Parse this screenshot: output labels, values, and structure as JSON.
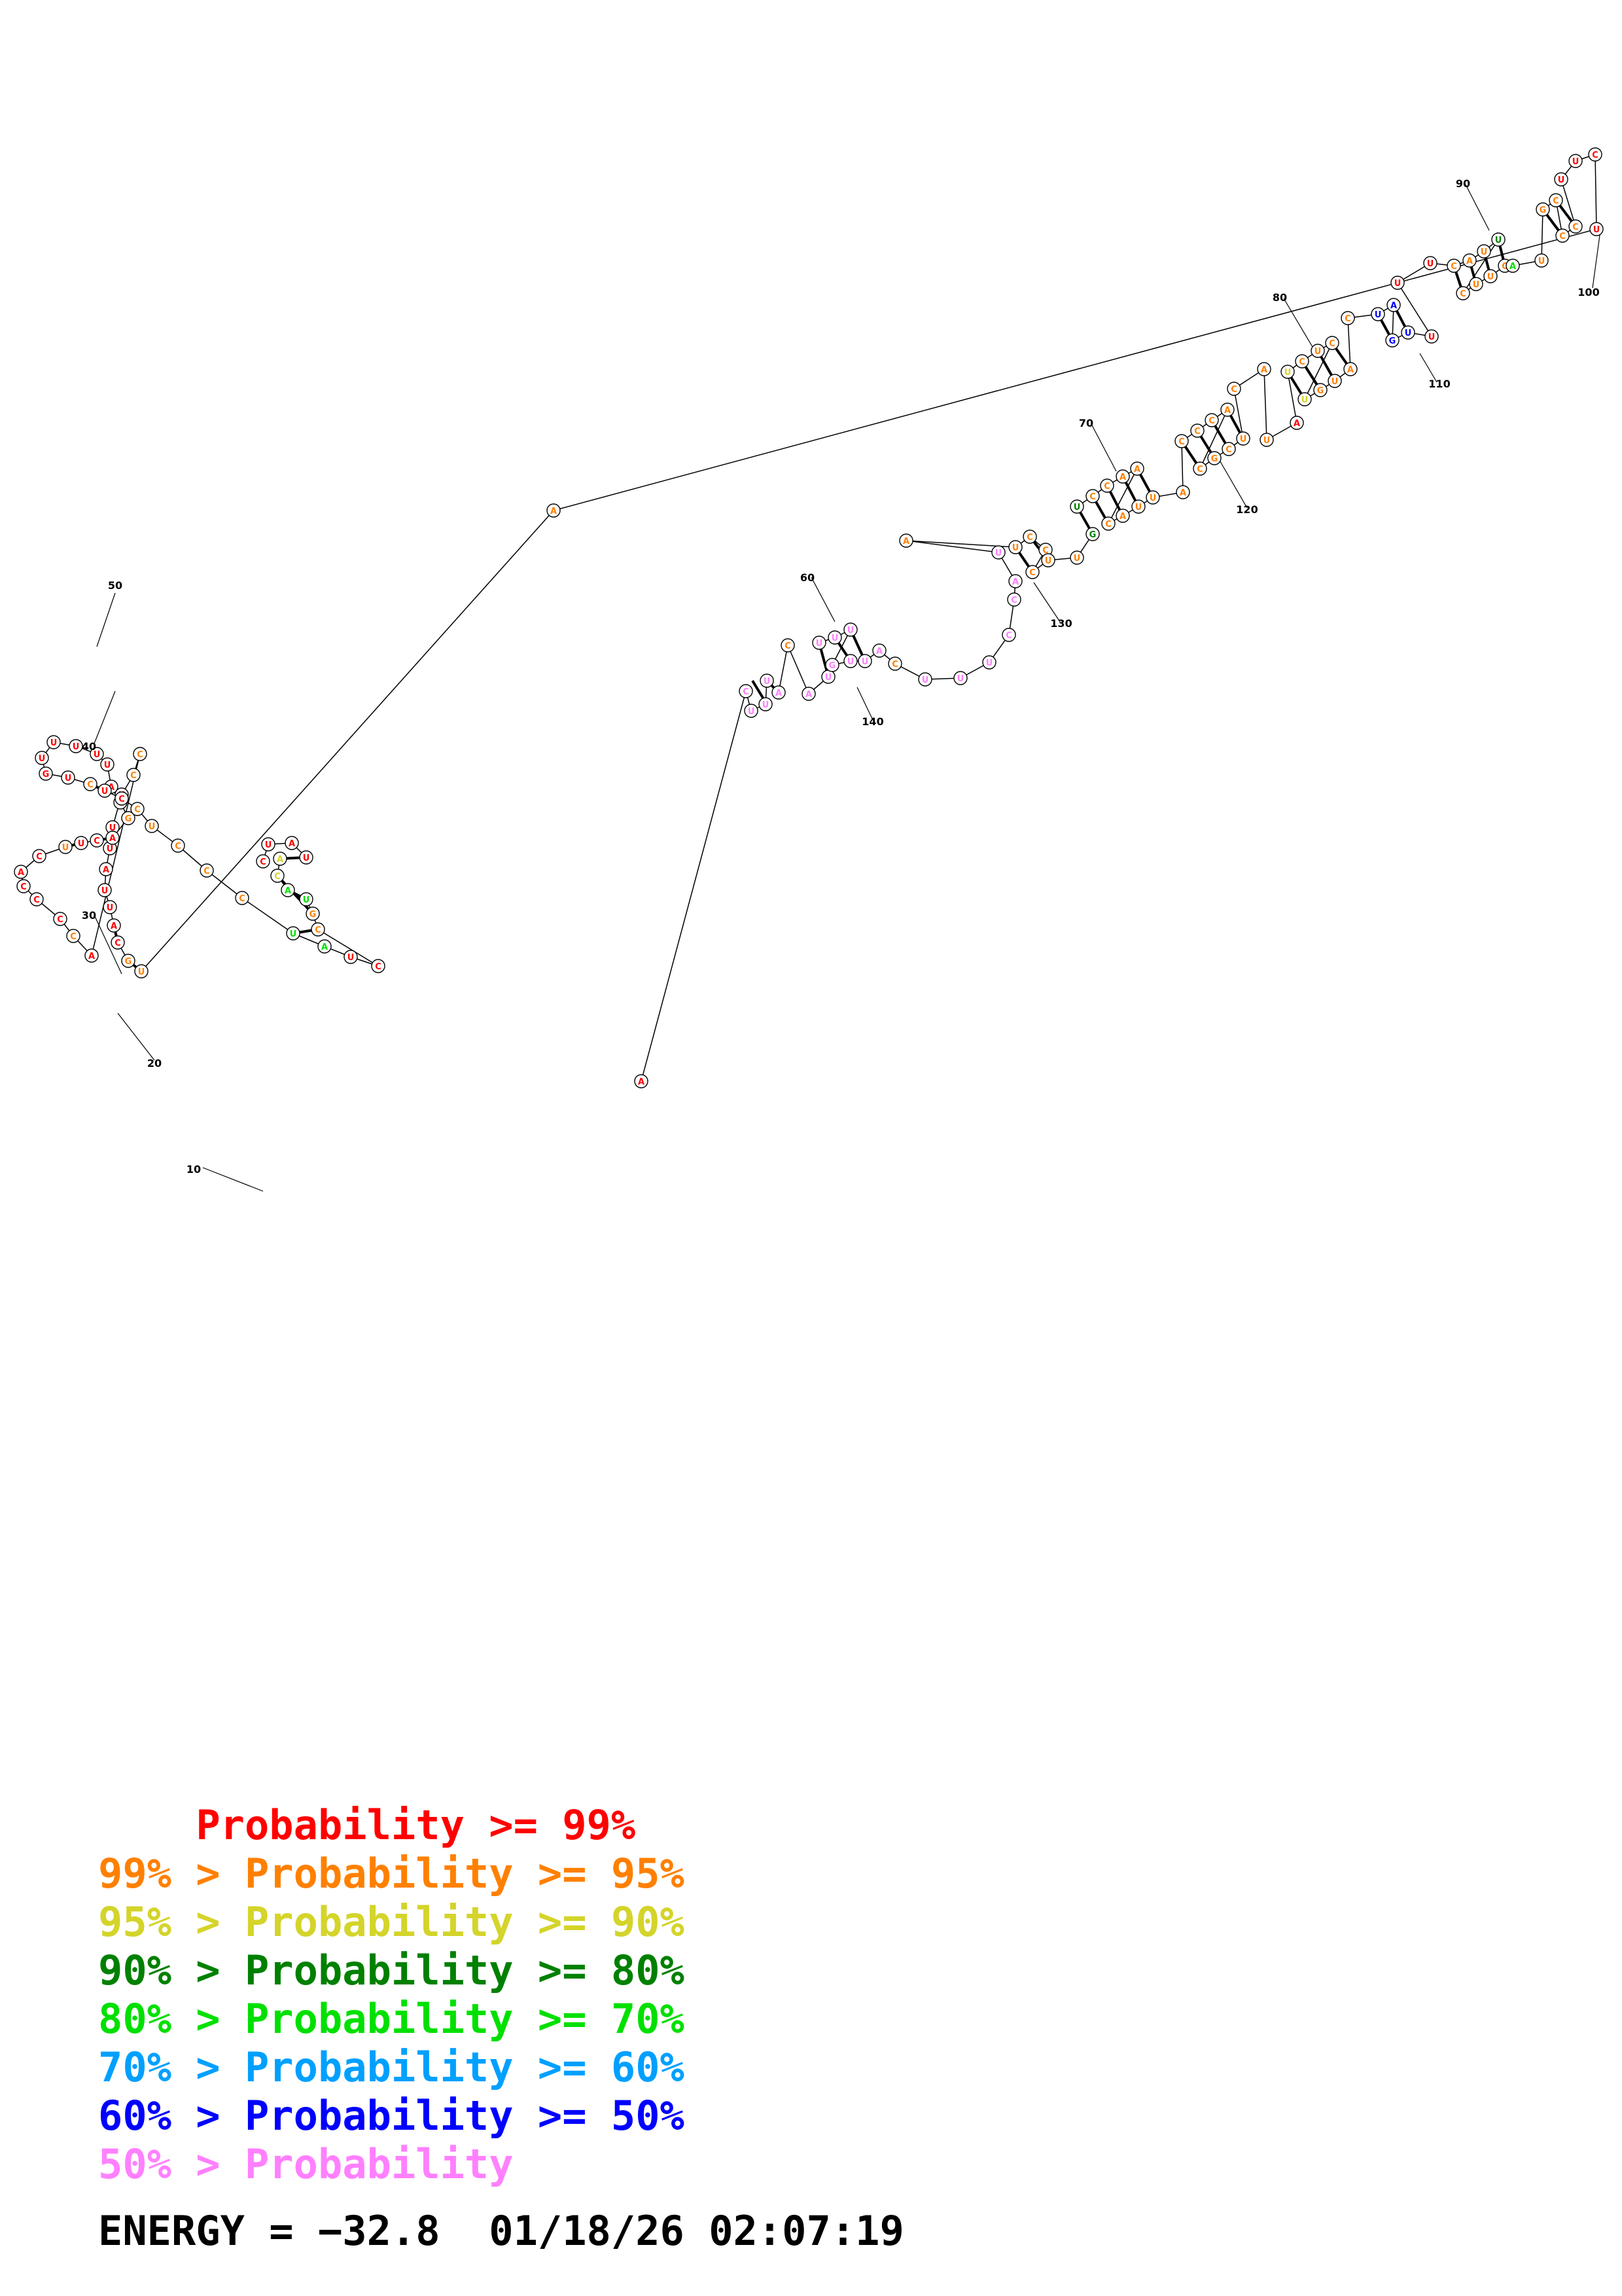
{
  "colors": {
    "red": "#ff0000",
    "orange": "#ff8000",
    "yellow": "#d4d42a",
    "darkgreen": "#008000",
    "green": "#00e000",
    "cyan": "#00a0ff",
    "blue": "#0000ff",
    "pink": "#ff80ff"
  },
  "structure": {
    "position_labels": [
      {
        "id": "p10",
        "text": "10"
      },
      {
        "id": "p20",
        "text": "20"
      },
      {
        "id": "p30",
        "text": "30"
      },
      {
        "id": "p40",
        "text": "40"
      },
      {
        "id": "p50",
        "text": "50"
      },
      {
        "id": "p60",
        "text": "60"
      },
      {
        "id": "p70",
        "text": "70"
      },
      {
        "id": "p80",
        "text": "80"
      },
      {
        "id": "p90",
        "text": "90"
      },
      {
        "id": "p100",
        "text": "100"
      },
      {
        "id": "p110",
        "text": "110"
      },
      {
        "id": "p120",
        "text": "120"
      },
      {
        "id": "p130",
        "text": "130"
      },
      {
        "id": "p140",
        "text": "140"
      }
    ]
  },
  "legend": {
    "lines": [
      {
        "prefix": "    ",
        "rest": "Probability >= 99%",
        "color": "#ff0000",
        "prefix_color": "#ff0000"
      },
      {
        "prefix": "99% > ",
        "rest": "Probability >= 95%",
        "color": "#ff8000",
        "prefix_color": "#ff8000"
      },
      {
        "prefix": "95% > ",
        "rest": "Probability >= 90%",
        "color": "#d4d42a",
        "prefix_color": "#d4d42a"
      },
      {
        "prefix": "90% > ",
        "rest": "Probability >= 80%",
        "color": "#008000",
        "prefix_color": "#008000"
      },
      {
        "prefix": "80% > ",
        "rest": "Probability >= 70%",
        "color": "#00e000",
        "prefix_color": "#00e000"
      },
      {
        "prefix": "70% > ",
        "rest": "Probability >= 60%",
        "color": "#00a0ff",
        "prefix_color": "#00a0ff"
      },
      {
        "prefix": "60% > ",
        "rest": "Probability >= 50%",
        "color": "#0000ff",
        "prefix_color": "#0000ff"
      },
      {
        "prefix": "50% > ",
        "rest": "Probability",
        "color": "#ff80ff",
        "prefix_color": "#ff80ff"
      }
    ],
    "energy_label": "ENERGY = ",
    "energy_value": "−32.8",
    "date": "01/18/26",
    "time": "02:07:19"
  }
}
